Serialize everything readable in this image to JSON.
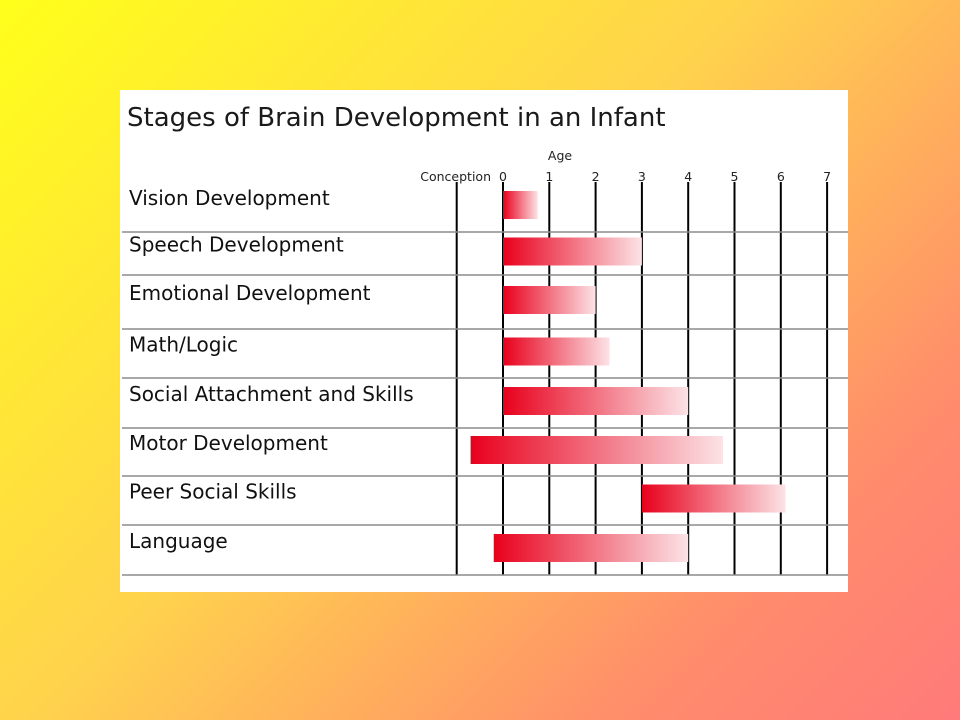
{
  "chart_data": {
    "type": "bar",
    "orientation": "horizontal-range",
    "title": "Stages of Brain Development in an Infant",
    "axis_title": "Age",
    "axis_start_label": "Conception",
    "ticks": [
      "0",
      "1",
      "2",
      "3",
      "4",
      "5",
      "6",
      "7"
    ],
    "xlim": [
      -1,
      7
    ],
    "grid": true,
    "categories": [
      "Vision Development",
      "Speech Development",
      "Emotional Development",
      "Math/Logic",
      "Social Attachment and Skills",
      "Motor Development",
      "Peer Social Skills",
      "Language"
    ],
    "ranges": [
      [
        0,
        0.75
      ],
      [
        0,
        3
      ],
      [
        0,
        2
      ],
      [
        0,
        2.3
      ],
      [
        0,
        4
      ],
      [
        -0.7,
        4.75
      ],
      [
        3,
        6.1
      ],
      [
        -0.2,
        4
      ]
    ],
    "bar_color": "#e8001c"
  }
}
